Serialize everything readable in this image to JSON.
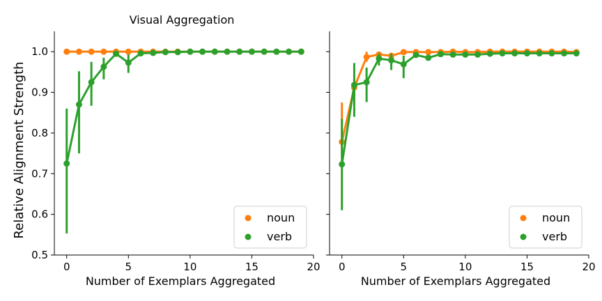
{
  "chart_data": [
    {
      "type": "line",
      "title": "Visual Aggregation",
      "xlabel": "Number of Exemplars Aggregated",
      "ylabel": "Relative Alignment Strength",
      "xlim": [
        -1,
        20
      ],
      "ylim": [
        0.5,
        1.05
      ],
      "xticks": [
        0,
        5,
        10,
        15,
        20
      ],
      "yticks": [
        0.5,
        0.6,
        0.7,
        0.8,
        0.9,
        1.0
      ],
      "x": [
        0,
        1,
        2,
        3,
        4,
        5,
        6,
        7,
        8,
        9,
        10,
        11,
        12,
        13,
        14,
        15,
        16,
        17,
        18,
        19
      ],
      "legend": "bottom-right",
      "series": [
        {
          "name": "noun",
          "color": "#ff7f0e",
          "values": [
            1.0,
            1.0,
            1.0,
            1.0,
            1.0,
            1.0,
            1.0,
            1.0,
            1.0,
            1.0,
            1.0,
            1.0,
            1.0,
            1.0,
            1.0,
            1.0,
            1.0,
            1.0,
            1.0,
            1.0
          ],
          "ci": [
            [
              1.0,
              1.0
            ],
            [
              1.0,
              1.0
            ],
            [
              1.0,
              1.0
            ],
            [
              1.0,
              1.0
            ],
            [
              1.0,
              1.0
            ],
            [
              1.0,
              1.0
            ],
            [
              1.0,
              1.0
            ],
            [
              1.0,
              1.0
            ],
            [
              1.0,
              1.0
            ],
            [
              1.0,
              1.0
            ],
            [
              1.0,
              1.0
            ],
            [
              1.0,
              1.0
            ],
            [
              1.0,
              1.0
            ],
            [
              1.0,
              1.0
            ],
            [
              1.0,
              1.0
            ],
            [
              1.0,
              1.0
            ],
            [
              1.0,
              1.0
            ],
            [
              1.0,
              1.0
            ],
            [
              1.0,
              1.0
            ],
            [
              1.0,
              1.0
            ]
          ]
        },
        {
          "name": "verb",
          "color": "#2ca02c",
          "values": [
            0.725,
            0.87,
            0.925,
            0.963,
            0.995,
            0.973,
            0.996,
            0.997,
            0.999,
            0.999,
            1.0,
            1.0,
            1.0,
            1.0,
            1.0,
            1.0,
            1.0,
            1.0,
            1.0,
            1.0
          ],
          "ci": [
            [
              0.553,
              0.86
            ],
            [
              0.75,
              0.952
            ],
            [
              0.867,
              0.975
            ],
            [
              0.932,
              0.985
            ],
            [
              0.988,
              1.0
            ],
            [
              0.948,
              0.993
            ],
            [
              0.99,
              1.0
            ],
            [
              0.993,
              1.0
            ],
            [
              0.997,
              1.0
            ],
            [
              0.997,
              1.0
            ],
            [
              1.0,
              1.0
            ],
            [
              1.0,
              1.0
            ],
            [
              1.0,
              1.0
            ],
            [
              1.0,
              1.0
            ],
            [
              1.0,
              1.0
            ],
            [
              1.0,
              1.0
            ],
            [
              1.0,
              1.0
            ],
            [
              1.0,
              1.0
            ],
            [
              1.0,
              1.0
            ],
            [
              1.0,
              1.0
            ]
          ]
        }
      ]
    },
    {
      "type": "line",
      "title": "",
      "xlabel": "Number of Exemplars Aggregated",
      "ylabel": "",
      "xlim": [
        -1,
        20
      ],
      "ylim": [
        0.5,
        1.05
      ],
      "xticks": [
        0,
        5,
        10,
        15,
        20
      ],
      "yticks": [
        0.5,
        0.6,
        0.7,
        0.8,
        0.9,
        1.0
      ],
      "x": [
        0,
        1,
        2,
        3,
        4,
        5,
        6,
        7,
        8,
        9,
        10,
        11,
        12,
        13,
        14,
        15,
        16,
        17,
        18,
        19
      ],
      "legend": "bottom-right",
      "series": [
        {
          "name": "noun",
          "color": "#ff7f0e",
          "values": [
            0.778,
            0.912,
            0.987,
            0.993,
            0.99,
            0.999,
            0.999,
            0.999,
            0.999,
            1.0,
            0.999,
            0.999,
            1.0,
            1.0,
            1.0,
            1.0,
            1.0,
            1.0,
            1.0,
            0.999
          ],
          "ci": [
            [
              0.74,
              0.875
            ],
            [
              0.89,
              0.93
            ],
            [
              0.975,
              1.0
            ],
            [
              0.988,
              1.0
            ],
            [
              0.984,
              0.995
            ],
            [
              0.997,
              1.0
            ],
            [
              0.997,
              1.0
            ],
            [
              0.997,
              1.0
            ],
            [
              0.997,
              1.0
            ],
            [
              0.998,
              1.0
            ],
            [
              0.997,
              1.0
            ],
            [
              0.997,
              1.0
            ],
            [
              0.998,
              1.0
            ],
            [
              0.998,
              1.0
            ],
            [
              0.998,
              1.0
            ],
            [
              0.998,
              1.0
            ],
            [
              0.998,
              1.0
            ],
            [
              0.998,
              1.0
            ],
            [
              0.998,
              1.0
            ],
            [
              0.997,
              1.0
            ]
          ]
        },
        {
          "name": "verb",
          "color": "#2ca02c",
          "values": [
            0.723,
            0.918,
            0.925,
            0.983,
            0.979,
            0.969,
            0.992,
            0.985,
            0.994,
            0.993,
            0.993,
            0.993,
            0.995,
            0.996,
            0.996,
            0.996,
            0.996,
            0.996,
            0.996,
            0.996
          ],
          "ci": [
            [
              0.61,
              0.835
            ],
            [
              0.84,
              0.972
            ],
            [
              0.876,
              0.961
            ],
            [
              0.966,
              0.995
            ],
            [
              0.955,
              0.995
            ],
            [
              0.935,
              0.99
            ],
            [
              0.986,
              0.998
            ],
            [
              0.978,
              0.991
            ],
            [
              0.99,
              0.998
            ],
            [
              0.989,
              0.997
            ],
            [
              0.989,
              0.997
            ],
            [
              0.989,
              0.997
            ],
            [
              0.992,
              0.998
            ],
            [
              0.993,
              0.999
            ],
            [
              0.993,
              0.999
            ],
            [
              0.993,
              0.999
            ],
            [
              0.993,
              0.999
            ],
            [
              0.993,
              0.999
            ],
            [
              0.993,
              0.999
            ],
            [
              0.993,
              0.999
            ]
          ]
        }
      ]
    }
  ]
}
